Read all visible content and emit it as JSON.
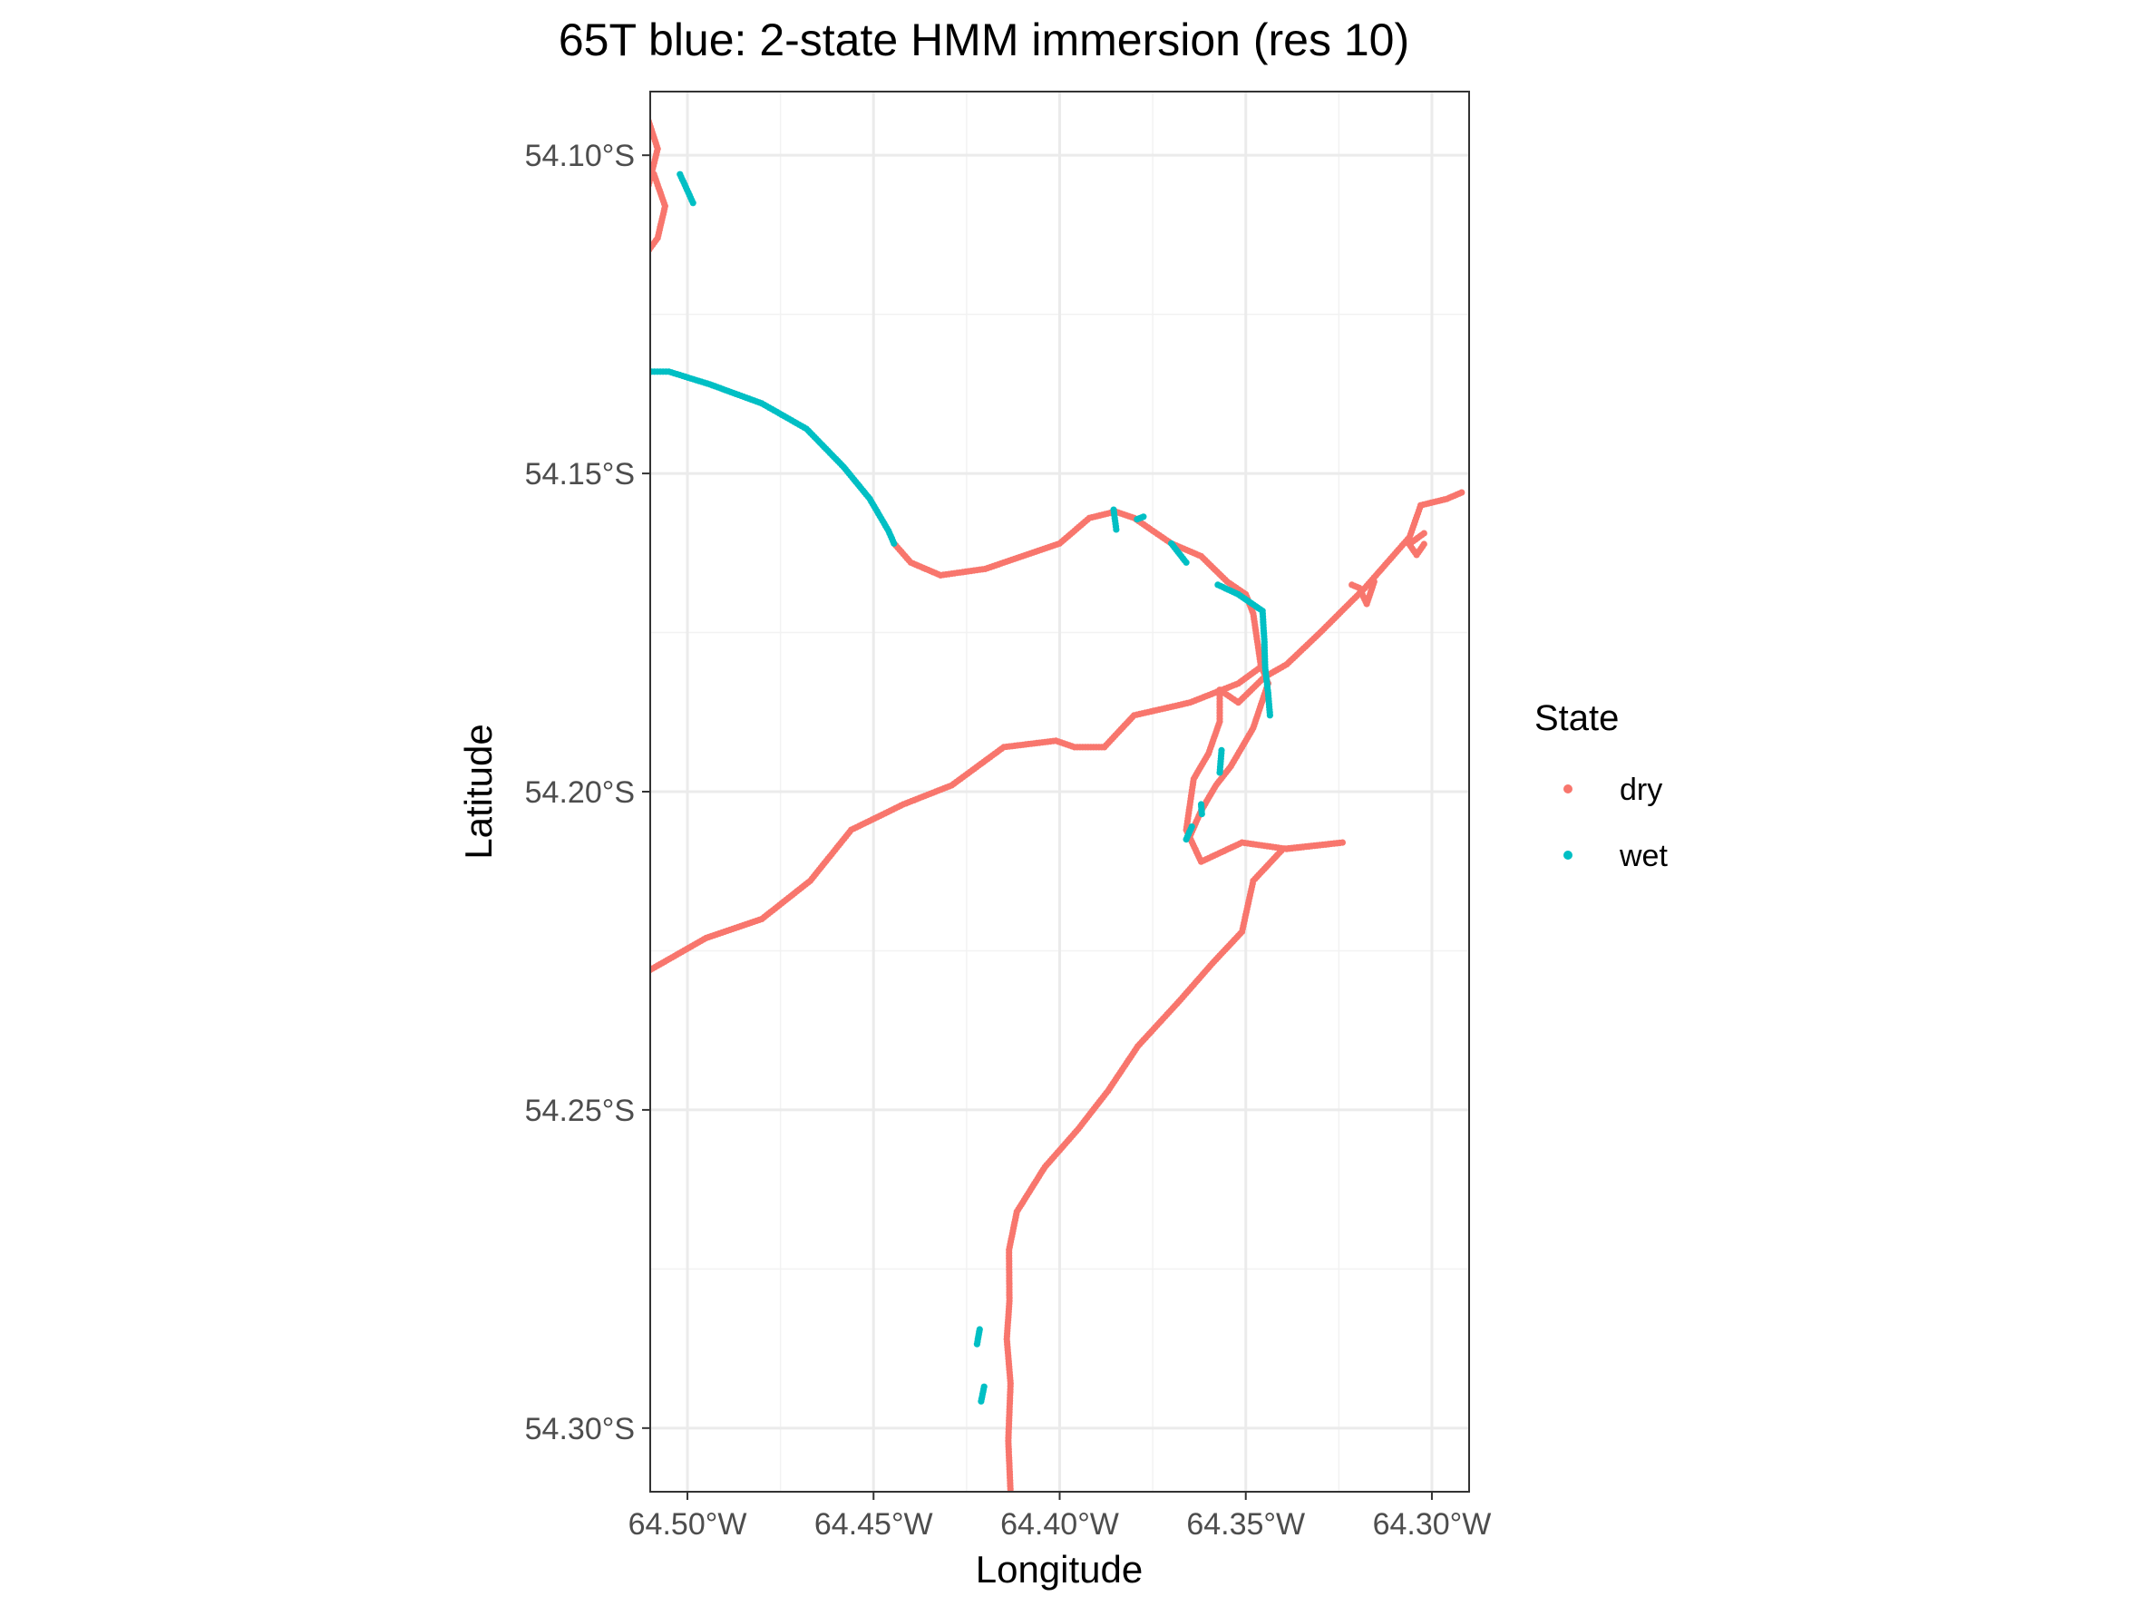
{
  "chart_data": {
    "type": "scatter",
    "title": "65T blue: 2-state HMM immersion (res 10)",
    "xlabel": "Longitude",
    "ylabel": "Latitude",
    "xlim": [
      -64.51,
      -64.29
    ],
    "ylim": [
      -54.31,
      -54.09
    ],
    "x_ticks": [
      {
        "value": -64.5,
        "label": "64.50°W"
      },
      {
        "value": -64.45,
        "label": "64.45°W"
      },
      {
        "value": -64.4,
        "label": "64.40°W"
      },
      {
        "value": -64.35,
        "label": "64.35°W"
      },
      {
        "value": -64.3,
        "label": "64.30°W"
      }
    ],
    "y_ticks": [
      {
        "value": -54.1,
        "label": "54.10°S"
      },
      {
        "value": -54.15,
        "label": "54.15°S"
      },
      {
        "value": -54.2,
        "label": "54.20°S"
      },
      {
        "value": -54.25,
        "label": "54.25°S"
      },
      {
        "value": -54.3,
        "label": "54.30°S"
      }
    ],
    "grid": true,
    "legend": {
      "title": "State",
      "position": "right"
    },
    "series": [
      {
        "name": "dry",
        "color": "#F8766D",
        "segments": [
          [
            [
              -64.4132,
              -54.31
            ],
            [
              -64.4138,
              -54.302
            ],
            [
              -64.4132,
              -54.293
            ],
            [
              -64.4142,
              -54.286
            ],
            [
              -64.4135,
              -54.28
            ],
            [
              -64.4136,
              -54.272
            ],
            [
              -64.4115,
              -54.266
            ],
            [
              -64.404,
              -54.259
            ],
            [
              -64.395,
              -54.253
            ],
            [
              -64.387,
              -54.247
            ],
            [
              -64.379,
              -54.24
            ],
            [
              -64.368,
              -54.233
            ],
            [
              -64.359,
              -54.227
            ],
            [
              -64.351,
              -54.222
            ],
            [
              -64.348,
              -54.214
            ],
            [
              -64.34,
              -54.209
            ],
            [
              -64.324,
              -54.208
            ],
            [
              -64.339,
              -54.209
            ],
            [
              -64.351,
              -54.208
            ],
            [
              -64.362,
              -54.211
            ],
            [
              -64.366,
              -54.206
            ],
            [
              -64.364,
              -54.198
            ],
            [
              -64.36,
              -54.194
            ],
            [
              -64.357,
              -54.189
            ],
            [
              -64.357,
              -54.184
            ],
            [
              -64.352,
              -54.186
            ],
            [
              -64.345,
              -54.182
            ],
            [
              -64.339,
              -54.18
            ],
            [
              -64.33,
              -54.175
            ],
            [
              -64.318,
              -54.168
            ],
            [
              -64.312,
              -54.164
            ],
            [
              -64.306,
              -54.16
            ],
            [
              -64.303,
              -54.155
            ],
            [
              -64.296,
              -54.154
            ],
            [
              -64.292,
              -54.153
            ]
          ],
          [
            [
              -64.3155,
              -54.167
            ],
            [
              -64.3175,
              -54.1705
            ],
            [
              -64.3195,
              -54.168
            ],
            [
              -64.3215,
              -54.1675
            ]
          ],
          [
            [
              -64.3021,
              -54.1611
            ],
            [
              -64.3041,
              -54.1628
            ],
            [
              -64.3061,
              -54.1611
            ],
            [
              -64.3021,
              -54.1594
            ]
          ],
          [
            [
              -64.345,
              -54.18
            ],
            [
              -64.352,
              -54.183
            ],
            [
              -64.365,
              -54.186
            ],
            [
              -64.38,
              -54.188
            ],
            [
              -64.388,
              -54.193
            ],
            [
              -64.396,
              -54.193
            ],
            [
              -64.401,
              -54.192
            ],
            [
              -64.415,
              -54.193
            ],
            [
              -64.429,
              -54.199
            ],
            [
              -64.442,
              -54.202
            ],
            [
              -64.456,
              -54.206
            ],
            [
              -64.467,
              -54.214
            ],
            [
              -64.48,
              -54.22
            ],
            [
              -64.495,
              -54.223
            ],
            [
              -64.51,
              -54.228
            ]
          ],
          [
            [
              -64.4445,
              -54.161
            ],
            [
              -64.44,
              -54.164
            ],
            [
              -64.432,
              -54.166
            ],
            [
              -64.42,
              -54.165
            ],
            [
              -64.41,
              -54.163
            ],
            [
              -64.4,
              -54.161
            ],
            [
              -64.392,
              -54.157
            ],
            [
              -64.385,
              -54.156
            ],
            [
              -64.38,
              -54.157
            ],
            [
              -64.37,
              -54.161
            ],
            [
              -64.362,
              -54.163
            ],
            [
              -64.355,
              -54.167
            ],
            [
              -64.35,
              -54.169
            ],
            [
              -64.348,
              -54.172
            ],
            [
              -64.347,
              -54.176
            ],
            [
              -64.346,
              -54.18
            ],
            [
              -64.344,
              -54.183
            ],
            [
              -64.348,
              -54.19
            ],
            [
              -64.354,
              -54.196
            ],
            [
              -64.358,
              -54.199
            ],
            [
              -64.362,
              -54.203
            ],
            [
              -64.365,
              -54.207
            ]
          ],
          [
            [
              -64.513,
              -54.09
            ],
            [
              -64.508,
              -54.099
            ],
            [
              -64.511,
              -54.106
            ],
            [
              -64.512,
              -54.113
            ],
            [
              -64.513,
              -54.117
            ],
            [
              -64.508,
              -54.113
            ],
            [
              -64.506,
              -54.108
            ],
            [
              -64.509,
              -54.103
            ]
          ]
        ]
      },
      {
        "name": "wet",
        "color": "#00BFC4",
        "segments": [
          [
            [
              -64.515,
              -54.134
            ],
            [
              -64.505,
              -54.134
            ],
            [
              -64.494,
              -54.136
            ],
            [
              -64.48,
              -54.139
            ],
            [
              -64.468,
              -54.143
            ],
            [
              -64.458,
              -54.149
            ],
            [
              -64.451,
              -54.154
            ],
            [
              -64.446,
              -54.159
            ],
            [
              -64.4445,
              -54.161
            ]
          ],
          [
            [
              -64.502,
              -54.103
            ],
            [
              -64.4985,
              -54.1075
            ]
          ],
          [
            [
              -64.37,
              -54.161
            ],
            [
              -64.366,
              -54.164
            ]
          ],
          [
            [
              -64.3855,
              -54.1557
            ],
            [
              -64.3848,
              -54.1588
            ]
          ],
          [
            [
              -64.3792,
              -54.1572
            ],
            [
              -64.3775,
              -54.1568
            ]
          ],
          [
            [
              -64.3575,
              -54.1675
            ],
            [
              -64.352,
              -54.169
            ],
            [
              -64.3455,
              -54.1716
            ],
            [
              -64.345,
              -54.1765
            ],
            [
              -64.3448,
              -54.1805
            ],
            [
              -64.344,
              -54.1845
            ],
            [
              -64.3435,
              -54.188
            ]
          ],
          [
            [
              -64.3565,
              -54.1935
            ],
            [
              -64.357,
              -54.197
            ]
          ],
          [
            [
              -64.362,
              -54.202
            ],
            [
              -64.3618,
              -54.2035
            ]
          ],
          [
            [
              -64.3645,
              -54.2055
            ],
            [
              -64.366,
              -54.2075
            ]
          ],
          [
            [
              -64.4215,
              -54.2845
            ],
            [
              -64.4222,
              -54.2868
            ]
          ],
          [
            [
              -64.4203,
              -54.2935
            ],
            [
              -64.4211,
              -54.2958
            ]
          ]
        ]
      }
    ]
  }
}
